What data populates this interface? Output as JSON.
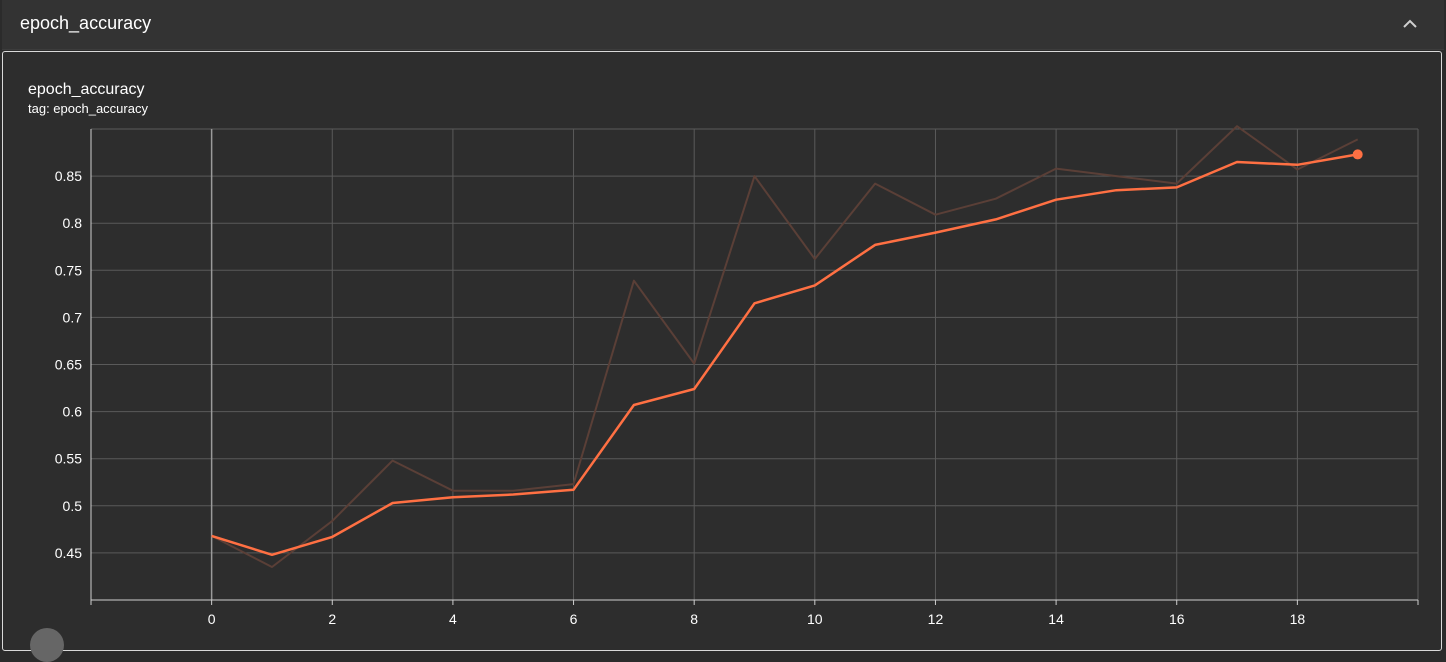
{
  "section": {
    "title": "epoch_accuracy",
    "collapse_icon": "chevron-up-icon"
  },
  "card": {
    "title": "epoch_accuracy",
    "tag": "tag: epoch_accuracy"
  },
  "colors": {
    "smoothed": "#ff7043",
    "raw": "#5a3f37",
    "grid": "#5a5a5a",
    "background": "#2d2d2d"
  },
  "chart_data": {
    "type": "line",
    "title": "epoch_accuracy",
    "xlabel": "",
    "ylabel": "",
    "x_ticks": [
      0,
      2,
      4,
      6,
      8,
      10,
      12,
      14,
      16,
      18
    ],
    "y_ticks": [
      0.45,
      0.5,
      0.55,
      0.6,
      0.65,
      0.7,
      0.75,
      0.8,
      0.85
    ],
    "y_tick_labels": [
      "0.45",
      "0.5",
      "0.55",
      "0.6",
      "0.65",
      "0.7",
      "0.75",
      "0.8",
      "0.85"
    ],
    "xlim": [
      -2,
      20
    ],
    "ylim": [
      0.4,
      0.9
    ],
    "grid": true,
    "series": [
      {
        "role": "raw",
        "x": [
          0,
          1,
          2,
          3,
          4,
          5,
          6,
          7,
          8,
          9,
          10,
          11,
          12,
          13,
          14,
          15,
          16,
          17,
          18,
          19
        ],
        "values": [
          0.468,
          0.435,
          0.484,
          0.548,
          0.516,
          0.516,
          0.523,
          0.739,
          0.651,
          0.85,
          0.762,
          0.842,
          0.809,
          0.826,
          0.858,
          0.85,
          0.842,
          0.903,
          0.857,
          0.889
        ]
      },
      {
        "role": "smoothed",
        "x": [
          0,
          1,
          2,
          3,
          4,
          5,
          6,
          7,
          8,
          9,
          10,
          11,
          12,
          13,
          14,
          15,
          16,
          17,
          18,
          19
        ],
        "values": [
          0.468,
          0.448,
          0.467,
          0.503,
          0.509,
          0.512,
          0.517,
          0.607,
          0.624,
          0.715,
          0.734,
          0.777,
          0.79,
          0.804,
          0.825,
          0.835,
          0.838,
          0.865,
          0.862,
          0.873
        ]
      }
    ]
  }
}
